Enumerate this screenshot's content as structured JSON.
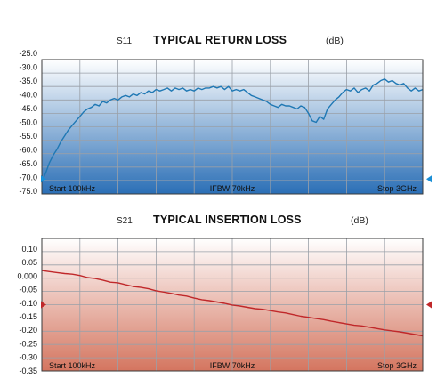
{
  "colors": {
    "s11_line": "#1f78b4",
    "s11_fill_top": "#ffffff",
    "s11_fill_bottom": "#2b6fb6",
    "s11_marker": "#1a8fd6",
    "s21_line": "#c0282a",
    "s21_fill_top": "#ffffff",
    "s21_fill_bottom": "#d4755f",
    "s21_marker": "#c0282a",
    "grid": "#9aa0a8",
    "frame": "#3a3a3a"
  },
  "chart_data": [
    {
      "type": "line",
      "param": "S11",
      "title": "TYPICAL RETURN LOSS",
      "unit": "(dB)",
      "ylim": [
        -70.0,
        -25.0
      ],
      "yticks": [
        "-25.0",
        "-30.0",
        "-35.0",
        "-40.0",
        "-45.0",
        "-50.0",
        "-55.0",
        "-60.0",
        "-65.0",
        "-70.0",
        "-75.0"
      ],
      "marker_value": -65.0,
      "footer": {
        "start": "Start 100kHz",
        "mid": "IFBW 70kHz",
        "stop": "Stop 3GHz"
      },
      "grid": true,
      "series": [
        {
          "x": [
            0,
            1,
            2,
            3,
            4,
            5,
            6,
            7,
            8,
            9,
            10,
            11,
            12,
            13,
            14,
            15,
            16,
            17,
            18,
            19,
            20,
            21,
            22,
            23,
            24,
            25,
            26,
            27,
            28,
            29,
            30,
            31,
            32,
            33,
            34,
            35,
            36,
            37,
            38,
            39,
            40,
            41,
            42,
            43,
            44,
            45,
            46,
            47,
            48,
            49,
            50,
            51,
            52,
            53,
            54,
            55,
            56,
            57,
            58,
            59,
            60,
            61,
            62,
            63,
            64,
            65,
            66,
            67,
            68,
            69,
            70,
            71,
            72,
            73,
            74,
            75,
            76,
            77,
            78,
            79,
            80,
            81,
            82,
            83,
            84,
            85,
            86,
            87,
            88,
            89,
            90,
            91,
            92,
            93,
            94,
            95,
            96,
            97,
            98,
            99,
            100
          ],
          "values": [
            -66.0,
            -63.0,
            -59.5,
            -57.0,
            -55.0,
            -52.5,
            -50.5,
            -48.5,
            -47.0,
            -45.5,
            -44.0,
            -42.5,
            -41.5,
            -41.0,
            -40.0,
            -40.5,
            -39.0,
            -39.5,
            -38.5,
            -38.0,
            -38.5,
            -37.5,
            -37.0,
            -37.5,
            -36.5,
            -37.0,
            -36.0,
            -36.5,
            -35.5,
            -36.0,
            -35.0,
            -35.5,
            -35.0,
            -34.5,
            -35.5,
            -34.5,
            -35.0,
            -34.5,
            -35.5,
            -35.0,
            -35.5,
            -34.5,
            -35.0,
            -34.5,
            -34.5,
            -34.0,
            -34.5,
            -34.0,
            -35.0,
            -34.0,
            -35.5,
            -35.0,
            -35.5,
            -35.0,
            -36.0,
            -37.0,
            -37.5,
            -38.0,
            -38.5,
            -39.0,
            -40.0,
            -40.5,
            -41.0,
            -40.0,
            -40.5,
            -40.5,
            -41.0,
            -41.5,
            -40.5,
            -41.0,
            -43.0,
            -45.5,
            -46.0,
            -44.0,
            -45.0,
            -41.5,
            -40.0,
            -38.5,
            -37.5,
            -36.0,
            -35.0,
            -35.5,
            -34.5,
            -36.0,
            -35.0,
            -34.5,
            -35.5,
            -33.5,
            -33.0,
            -32.0,
            -31.5,
            -32.5,
            -32.0,
            -33.0,
            -33.5,
            -33.0,
            -34.5,
            -35.5,
            -34.5,
            -35.5,
            -35.0
          ]
        }
      ]
    },
    {
      "type": "line",
      "param": "S21",
      "title": "TYPICAL INSERTION LOSS",
      "unit": "(dB)",
      "ylim": [
        -0.3,
        0.1
      ],
      "yticks": [
        "0.10",
        "0.05",
        "0.000",
        "-0.05",
        "-0.10",
        "-0.15",
        "-0.20",
        "-0.25",
        "-0.30",
        "-0.35"
      ],
      "marker_value": -0.1,
      "footer": {
        "start": "Start 100kHz",
        "mid": "IFBW 70kHz",
        "stop": "Stop 3GHz"
      },
      "grid": true,
      "series": [
        {
          "x": [
            0,
            2,
            4,
            6,
            8,
            10,
            12,
            14,
            16,
            18,
            20,
            22,
            24,
            26,
            28,
            30,
            32,
            34,
            36,
            38,
            40,
            42,
            44,
            46,
            48,
            50,
            52,
            54,
            56,
            58,
            60,
            62,
            64,
            66,
            68,
            70,
            72,
            74,
            76,
            78,
            80,
            82,
            84,
            86,
            88,
            90,
            92,
            94,
            96,
            98,
            100
          ],
          "values": [
            0.003,
            0.0,
            -0.003,
            -0.006,
            -0.008,
            -0.012,
            -0.018,
            -0.021,
            -0.026,
            -0.032,
            -0.034,
            -0.04,
            -0.045,
            -0.048,
            -0.052,
            -0.058,
            -0.062,
            -0.066,
            -0.071,
            -0.074,
            -0.08,
            -0.085,
            -0.088,
            -0.092,
            -0.096,
            -0.101,
            -0.104,
            -0.108,
            -0.112,
            -0.114,
            -0.118,
            -0.122,
            -0.125,
            -0.13,
            -0.135,
            -0.138,
            -0.142,
            -0.145,
            -0.15,
            -0.154,
            -0.158,
            -0.162,
            -0.164,
            -0.168,
            -0.172,
            -0.176,
            -0.179,
            -0.182,
            -0.186,
            -0.19,
            -0.194
          ]
        }
      ]
    }
  ]
}
